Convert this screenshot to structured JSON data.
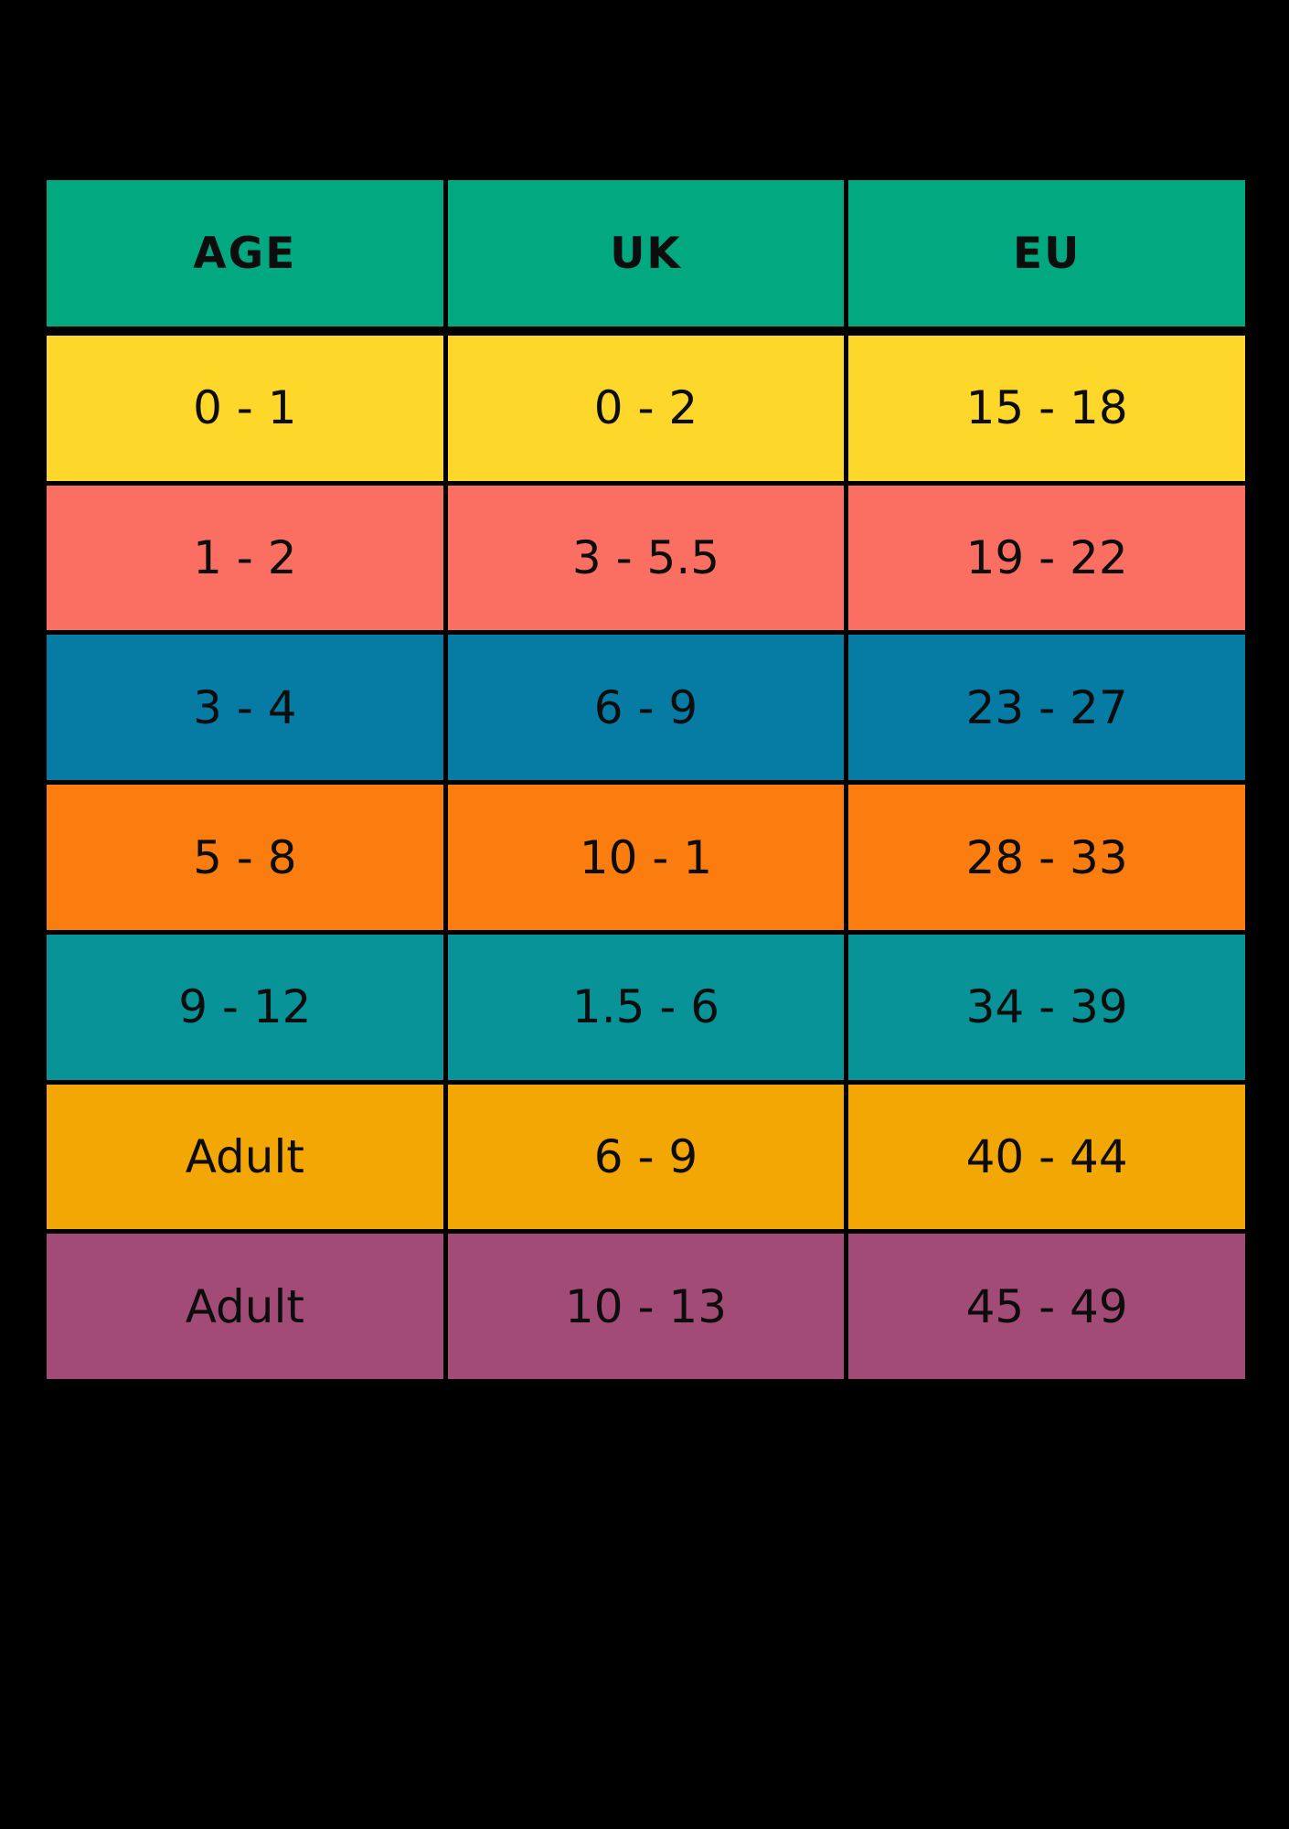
{
  "page": {
    "background": "#000000",
    "text_color": "#0D0D0D"
  },
  "chart_data": {
    "type": "table",
    "columns": [
      "AGE",
      "UK",
      "EU"
    ],
    "rows": [
      [
        "0 - 1",
        "0 - 2",
        "15 - 18"
      ],
      [
        "1 - 2",
        "3 - 5.5",
        "19 - 22"
      ],
      [
        "3 - 4",
        "6 - 9",
        "23 - 27"
      ],
      [
        "5 - 8",
        "10 - 1",
        "28 - 33"
      ],
      [
        "9 - 12",
        "1.5 - 6",
        "34 - 39"
      ],
      [
        "Adult",
        "6 - 9",
        "40 - 44"
      ],
      [
        "Adult",
        "10 - 13",
        "45 - 49"
      ]
    ],
    "header_color": "#02A980",
    "row_colors": [
      "#FED72B",
      "#FB6F63",
      "#067BA4",
      "#FB7D10",
      "#079397",
      "#F2A705",
      "#A34B77"
    ],
    "grid_color": "#000000",
    "legend_position": "none"
  }
}
